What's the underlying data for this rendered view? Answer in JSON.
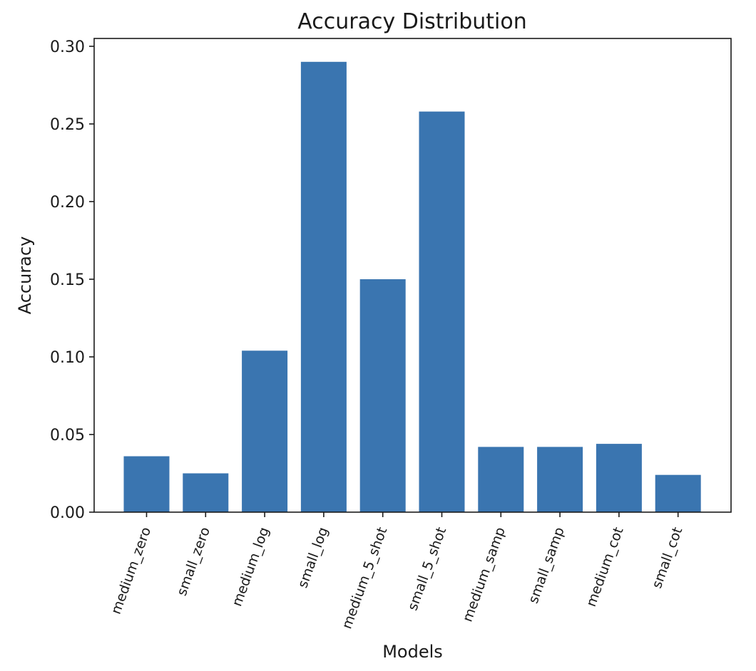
{
  "chart_data": {
    "type": "bar",
    "title": "Accuracy Distribution",
    "xlabel": "Models",
    "ylabel": "Accuracy",
    "categories": [
      "medium_zero",
      "small_zero",
      "medium_log",
      "small_log",
      "medium_5_shot",
      "small_5_shot",
      "medium_samp",
      "small_samp",
      "medium_cot",
      "small_cot"
    ],
    "values": [
      0.036,
      0.025,
      0.104,
      0.29,
      0.15,
      0.258,
      0.042,
      0.042,
      0.044,
      0.024
    ],
    "ylim": [
      0,
      0.3
    ],
    "yticks": [
      "0.00",
      "0.05",
      "0.10",
      "0.15",
      "0.20",
      "0.25",
      "0.30"
    ],
    "bar_color": "#3a75b0",
    "grid": false,
    "legend": false
  }
}
